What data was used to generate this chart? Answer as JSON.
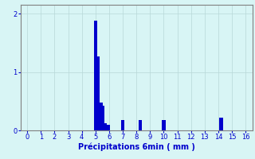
{
  "title": "",
  "xlabel": "Précipitations 6min ( mm )",
  "ylabel": "",
  "bar_color": "#0000CC",
  "background_color": "#D8F5F5",
  "grid_color": "#B8D8D8",
  "axis_label_color": "#0000CC",
  "tick_color": "#0000CC",
  "spine_color": "#808080",
  "xlim": [
    -0.5,
    16.5
  ],
  "ylim": [
    0,
    2.15
  ],
  "yticks": [
    0,
    1,
    2
  ],
  "xticks": [
    0,
    1,
    2,
    3,
    4,
    5,
    6,
    7,
    8,
    9,
    10,
    11,
    12,
    13,
    14,
    15,
    16
  ],
  "bar_width": 0.25,
  "bars": {
    "5.0": 1.88,
    "5.2": 1.27,
    "5.4": 0.47,
    "5.5": 0.42,
    "5.6": 0.12,
    "5.7": 0.12,
    "5.85": 0.1,
    "5.95": 0.1,
    "7.0": 0.18,
    "8.3": 0.18,
    "10.0": 0.18,
    "14.2": 0.22
  }
}
